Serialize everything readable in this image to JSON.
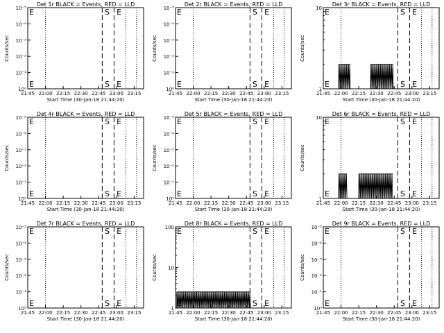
{
  "common": {
    "ylabel": "Counts/sec",
    "xlabel": "Start Time (30-Jan-18 21:44:20)",
    "x_ticks": [
      "21:45",
      "22:00",
      "22:15",
      "22:30",
      "22:45",
      "23:00",
      "23:15"
    ],
    "colors": {
      "axes": "#000000",
      "events": "#000000"
    }
  },
  "chart_data": [
    {
      "type": "line",
      "title": "Det 1r BLACK = Events, RED = LLD",
      "scale": "log",
      "y_ticks": [
        {
          "e": 0,
          "t": "10⁰"
        },
        {
          "e": 1,
          "t": "10⁻¹"
        },
        {
          "e": 2,
          "t": "10⁻²"
        },
        {
          "e": 3,
          "t": "10⁻³"
        },
        {
          "e": 4,
          "t": "10⁻⁴"
        },
        {
          "e": 5,
          "t": "10⁻⁵"
        }
      ],
      "dotted": [
        "22:00",
        "23:08",
        "23:17"
      ],
      "dashed": [
        "22:48",
        "22:58"
      ],
      "markers": [
        {
          "t": "E",
          "x": "21:45"
        },
        {
          "t": "S",
          "x": "22:49"
        },
        {
          "t": "E",
          "x": "22:59"
        }
      ],
      "events": []
    },
    {
      "type": "line",
      "title": "Det 2r BLACK = Events, RED = LLD",
      "scale": "log",
      "y_ticks": [
        {
          "e": 0,
          "t": "10⁰"
        },
        {
          "e": 1,
          "t": "10⁻¹"
        },
        {
          "e": 2,
          "t": "10⁻²"
        },
        {
          "e": 3,
          "t": "10⁻³"
        },
        {
          "e": 4,
          "t": "10⁻⁴"
        },
        {
          "e": 5,
          "t": "10⁻⁵"
        }
      ],
      "dotted": [
        "22:00",
        "23:08",
        "23:17"
      ],
      "dashed": [
        "22:48",
        "22:58"
      ],
      "markers": [
        {
          "t": "E",
          "x": "21:45"
        },
        {
          "t": "S",
          "x": "22:49"
        },
        {
          "t": "E",
          "x": "22:59"
        }
      ],
      "events": []
    },
    {
      "type": "line",
      "title": "Det 3r BLACK = Events, RED = LLD",
      "scale": "log",
      "y_ticks": [
        {
          "e": 1,
          "t": "10"
        },
        {
          "e": 0,
          "t": "1"
        }
      ],
      "dotted": [
        "22:00",
        "23:08",
        "23:17"
      ],
      "dashed": [
        "22:48",
        "22:58"
      ],
      "markers": [
        {
          "t": "E",
          "x": "21:45"
        },
        {
          "t": "S",
          "x": "22:49"
        },
        {
          "t": "E",
          "x": "22:59"
        }
      ],
      "events": [
        {
          "from": "21:58",
          "to": "22:08",
          "level": 2
        },
        {
          "from": "22:25",
          "to": "22:44",
          "level": 2
        }
      ]
    },
    {
      "type": "line",
      "title": "Det 4r BLACK = Events, RED = LLD",
      "scale": "log",
      "y_ticks": [
        {
          "e": 0,
          "t": "10⁰"
        },
        {
          "e": 1,
          "t": "10⁻¹"
        },
        {
          "e": 2,
          "t": "10⁻²"
        },
        {
          "e": 3,
          "t": "10⁻³"
        },
        {
          "e": 4,
          "t": "10⁻⁴"
        },
        {
          "e": 5,
          "t": "10⁻⁵"
        }
      ],
      "dotted": [
        "22:00",
        "23:08",
        "23:17"
      ],
      "dashed": [
        "22:48",
        "22:58"
      ],
      "markers": [
        {
          "t": "E",
          "x": "21:45"
        },
        {
          "t": "S",
          "x": "22:49"
        },
        {
          "t": "E",
          "x": "22:59"
        }
      ],
      "events": []
    },
    {
      "type": "line",
      "title": "Det 5r BLACK = Events, RED = LLD",
      "scale": "log",
      "y_ticks": [
        {
          "e": 0,
          "t": "10⁰"
        },
        {
          "e": 1,
          "t": "10⁻¹"
        },
        {
          "e": 2,
          "t": "10⁻²"
        },
        {
          "e": 3,
          "t": "10⁻³"
        },
        {
          "e": 4,
          "t": "10⁻⁴"
        },
        {
          "e": 5,
          "t": "10⁻⁵"
        }
      ],
      "dotted": [
        "22:00",
        "23:08",
        "23:17"
      ],
      "dashed": [
        "22:48",
        "22:58"
      ],
      "markers": [
        {
          "t": "E",
          "x": "21:45"
        },
        {
          "t": "S",
          "x": "22:49"
        },
        {
          "t": "E",
          "x": "22:59"
        }
      ],
      "events": []
    },
    {
      "type": "line",
      "title": "Det 6r BLACK = Events, RED = LLD",
      "scale": "log",
      "y_ticks": [
        {
          "e": 1,
          "t": "10"
        },
        {
          "e": 0,
          "t": "1"
        }
      ],
      "dotted": [
        "22:00",
        "23:08",
        "23:17"
      ],
      "dashed": [
        "22:48",
        "22:58"
      ],
      "markers": [
        {
          "t": "E",
          "x": "21:45"
        },
        {
          "t": "S",
          "x": "22:49"
        },
        {
          "t": "E",
          "x": "22:59"
        }
      ],
      "events": [
        {
          "from": "21:58",
          "to": "22:05",
          "level": 2
        },
        {
          "from": "22:15",
          "to": "22:44",
          "level": 2
        }
      ]
    },
    {
      "type": "line",
      "title": "Det 7r BLACK = Events, RED = LLD",
      "scale": "log",
      "y_ticks": [
        {
          "e": 0,
          "t": "10⁰"
        },
        {
          "e": 1,
          "t": "10⁻¹"
        },
        {
          "e": 2,
          "t": "10⁻²"
        },
        {
          "e": 3,
          "t": "10⁻³"
        },
        {
          "e": 4,
          "t": "10⁻⁴"
        },
        {
          "e": 5,
          "t": "10⁻⁵"
        }
      ],
      "dotted": [
        "22:00",
        "23:08",
        "23:17"
      ],
      "dashed": [
        "22:48",
        "22:58"
      ],
      "markers": [
        {
          "t": "E",
          "x": "21:45"
        },
        {
          "t": "S",
          "x": "22:49"
        },
        {
          "t": "E",
          "x": "22:59"
        }
      ],
      "events": []
    },
    {
      "type": "line",
      "title": "Det 8r BLACK = Events, RED = LLD",
      "scale": "log",
      "y_ticks": [
        {
          "e": 2,
          "t": "100"
        },
        {
          "e": 1,
          "t": "10"
        },
        {
          "e": 0,
          "t": "1"
        }
      ],
      "dotted": [
        "22:00",
        "23:08",
        "23:17"
      ],
      "dashed": [
        "22:48",
        "22:58"
      ],
      "markers": [
        {
          "t": "E",
          "x": "21:45"
        },
        {
          "t": "S",
          "x": "22:49"
        },
        {
          "t": "E",
          "x": "22:59"
        }
      ],
      "events": [
        {
          "from": "21:46",
          "to": "22:48",
          "level": 2.5
        }
      ]
    },
    {
      "type": "line",
      "title": "Det 9r BLACK = Events, RED = LLD",
      "scale": "log",
      "y_ticks": [
        {
          "e": 0,
          "t": "10⁰"
        },
        {
          "e": 1,
          "t": "10⁻¹"
        },
        {
          "e": 2,
          "t": "10⁻²"
        },
        {
          "e": 3,
          "t": "10⁻³"
        },
        {
          "e": 4,
          "t": "10⁻⁴"
        },
        {
          "e": 5,
          "t": "10⁻⁵"
        }
      ],
      "dotted": [
        "22:00",
        "23:08",
        "23:17"
      ],
      "dashed": [
        "22:48",
        "22:58"
      ],
      "markers": [
        {
          "t": "E",
          "x": "21:45"
        },
        {
          "t": "S",
          "x": "22:49"
        },
        {
          "t": "E",
          "x": "22:59"
        }
      ],
      "events": []
    }
  ]
}
